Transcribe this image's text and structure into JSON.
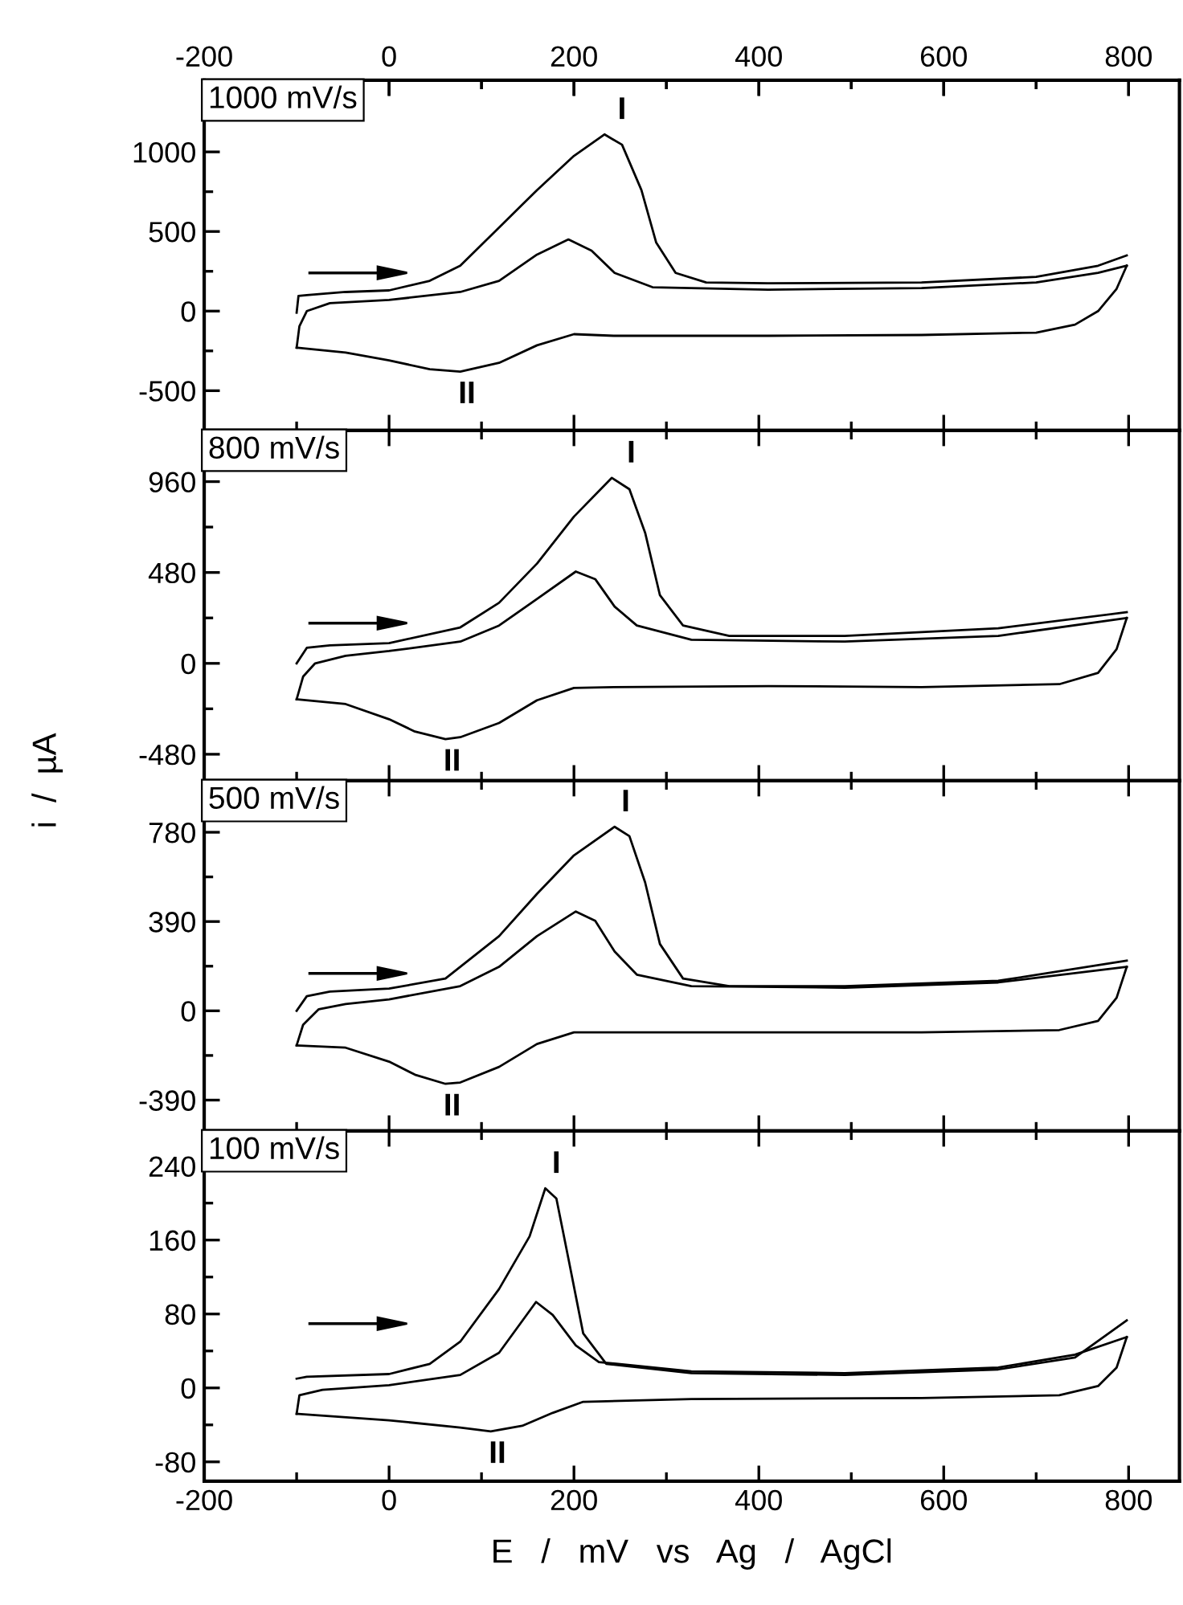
{
  "chart_data": [
    {
      "type": "line",
      "xlim": [
        -200,
        855
      ],
      "x2lim": [
        -200,
        855
      ],
      "xticks": [
        -200,
        {
          "value": -100,
          "label": null
        },
        0,
        {
          "value": 100,
          "label": null
        },
        200,
        {
          "value": 300,
          "label": null
        },
        400,
        {
          "value": 500,
          "label": null
        },
        600,
        {
          "value": 700,
          "label": null
        },
        800
      ],
      "x2ticks": [
        -200,
        {
          "value": -100,
          "label": null
        },
        0,
        {
          "value": 100,
          "label": null
        },
        200,
        {
          "value": 300,
          "label": null
        },
        400,
        {
          "value": 500,
          "label": null
        },
        600,
        {
          "value": 700,
          "label": null
        },
        800
      ],
      "ylim": [
        -750,
        1450
      ],
      "yticks": [
        -500,
        {
          "value": -250,
          "label": null
        },
        0,
        {
          "value": 250,
          "label": null
        },
        500,
        {
          "value": 750,
          "label": null
        },
        1000,
        {
          "value": 1250,
          "label": null
        }
      ],
      "tick_labels": "y",
      "grid": false,
      "marker": "none",
      "line_style": "solid",
      "series": [
        {
          "color": "#000000",
          "x": [
            -100,
            -98,
            -89,
            -47,
            0,
            44,
            77,
            119,
            160,
            200,
            233,
            252,
            273,
            289,
            310,
            343,
            410,
            576,
            700,
            767,
            798
          ],
          "values": [
            -10,
            95,
            100,
            120,
            130,
            190,
            285,
            525,
            760,
            975,
            1110,
            1045,
            760,
            430,
            240,
            180,
            175,
            180,
            215,
            285,
            350
          ]
        },
        {
          "color": "#000000",
          "x": [
            798,
            787,
            767,
            742,
            700,
            576,
            410,
            243,
            200,
            160,
            119,
            77,
            44,
            0,
            -47,
            -100
          ],
          "values": [
            285,
            140,
            0,
            -85,
            -135,
            -150,
            -155,
            -155,
            -145,
            -215,
            -325,
            -380,
            -365,
            -310,
            -260,
            -230
          ]
        },
        {
          "color": "#000000",
          "x": [
            -100,
            -97,
            -89,
            -64,
            0,
            77,
            119,
            160,
            194,
            219,
            244,
            285,
            410,
            576,
            700,
            767,
            798
          ],
          "values": [
            -230,
            -95,
            0,
            50,
            70,
            120,
            190,
            355,
            450,
            380,
            240,
            150,
            135,
            145,
            180,
            240,
            285
          ]
        }
      ],
      "annotations": [
        "1000 mV/s",
        {
          "text": "I",
          "x": 240,
          "y": 1110
        },
        {
          "text": "II",
          "x": 77,
          "y": -380
        }
      ]
    },
    {
      "type": "line",
      "xlim": [
        -200,
        855
      ],
      "xticks": [
        -200,
        {
          "value": -100,
          "label": null
        },
        0,
        {
          "value": 100,
          "label": null
        },
        200,
        {
          "value": 300,
          "label": null
        },
        400,
        {
          "value": 500,
          "label": null
        },
        600,
        {
          "value": 700,
          "label": null
        },
        800
      ],
      "ylim": [
        -620,
        1230
      ],
      "yticks": [
        -480,
        {
          "value": -240,
          "label": null
        },
        0,
        {
          "value": 240,
          "label": null
        },
        480,
        {
          "value": 720,
          "label": null
        },
        960,
        {
          "value": 1200,
          "label": null
        }
      ],
      "tick_labels": "y",
      "grid": false,
      "marker": "none",
      "line_style": "solid",
      "ylabel": "i  /  µA",
      "series": [
        {
          "color": "#000000",
          "x": [
            -100,
            -89,
            -64,
            0,
            77,
            119,
            160,
            200,
            241,
            260,
            277,
            293,
            318,
            368,
            493,
            659,
            798
          ],
          "values": [
            0,
            82,
            95,
            107,
            190,
            320,
            527,
            775,
            980,
            920,
            690,
            360,
            200,
            145,
            145,
            185,
            270
          ]
        },
        {
          "color": "#000000",
          "x": [
            798,
            787,
            767,
            725,
            576,
            410,
            243,
            200,
            160,
            119,
            77,
            61,
            28,
            0,
            -47,
            -100
          ],
          "values": [
            240,
            75,
            -50,
            -110,
            -125,
            -120,
            -125,
            -130,
            -195,
            -315,
            -390,
            -400,
            -360,
            -295,
            -215,
            -190
          ]
        },
        {
          "color": "#000000",
          "x": [
            -100,
            -93,
            -80,
            -47,
            0,
            77,
            119,
            160,
            202,
            223,
            244,
            268,
            327,
            493,
            659,
            798
          ],
          "values": [
            -190,
            -70,
            0,
            40,
            65,
            115,
            200,
            340,
            485,
            445,
            300,
            200,
            125,
            115,
            145,
            240
          ]
        }
      ],
      "annotations": [
        "800 mV/s",
        {
          "text": "I",
          "x": 250,
          "y": 980
        },
        {
          "text": "II",
          "x": 61,
          "y": -400
        }
      ]
    },
    {
      "type": "line",
      "xlim": [
        -200,
        855
      ],
      "xticks": [
        -200,
        {
          "value": -100,
          "label": null
        },
        0,
        {
          "value": 100,
          "label": null
        },
        200,
        {
          "value": 300,
          "label": null
        },
        400,
        {
          "value": 500,
          "label": null
        },
        600,
        {
          "value": 700,
          "label": null
        },
        800
      ],
      "ylim": [
        -525,
        1005
      ],
      "yticks": [
        -390,
        {
          "value": -195,
          "label": null
        },
        0,
        {
          "value": 195,
          "label": null
        },
        390,
        {
          "value": 585,
          "label": null
        },
        780,
        {
          "value": 975,
          "label": null
        }
      ],
      "tick_labels": "y",
      "grid": false,
      "marker": "none",
      "line_style": "solid",
      "series": [
        {
          "color": "#000000",
          "x": [
            -100,
            -89,
            -64,
            0,
            61,
            119,
            160,
            200,
            244,
            260,
            277,
            293,
            318,
            368,
            493,
            659,
            798
          ],
          "values": [
            0,
            64,
            84,
            97,
            141,
            326,
            511,
            679,
            804,
            763,
            561,
            292,
            141,
            108,
            108,
            131,
            219
          ]
        },
        {
          "color": "#000000",
          "x": [
            798,
            787,
            767,
            725,
            576,
            410,
            243,
            200,
            160,
            119,
            77,
            61,
            28,
            0,
            -47,
            -100
          ],
          "values": [
            192,
            57,
            -44,
            -84,
            -94,
            -94,
            -94,
            -94,
            -145,
            -245,
            -313,
            -319,
            -279,
            -222,
            -161,
            -151
          ]
        },
        {
          "color": "#000000",
          "x": [
            -100,
            -93,
            -76,
            -47,
            0,
            77,
            119,
            160,
            202,
            223,
            244,
            268,
            327,
            493,
            659,
            798
          ],
          "values": [
            -151,
            -61,
            7,
            30,
            50,
            108,
            192,
            326,
            434,
            393,
            259,
            158,
            108,
            101,
            124,
            192
          ]
        }
      ],
      "annotations": [
        "500 mV/s",
        {
          "text": "I",
          "x": 244,
          "y": 804
        },
        {
          "text": "II",
          "x": 61,
          "y": -319
        }
      ]
    },
    {
      "type": "line",
      "xlim": [
        -200,
        855
      ],
      "xticks": [
        -200,
        {
          "value": -100,
          "label": null
        },
        0,
        {
          "value": 100,
          "label": null
        },
        200,
        {
          "value": 300,
          "label": null
        },
        400,
        {
          "value": 500,
          "label": null
        },
        600,
        {
          "value": 700,
          "label": null
        },
        800
      ],
      "ylim": [
        -101,
        278
      ],
      "yticks": [
        -80,
        {
          "value": -40,
          "label": null
        },
        0,
        {
          "value": 40,
          "label": null
        },
        80,
        {
          "value": 120,
          "label": null
        },
        160,
        {
          "value": 200,
          "label": null
        },
        240
      ],
      "grid": false,
      "marker": "none",
      "line_style": "solid",
      "xlabel": "E   /   mV   vs   Ag   /   AgCl",
      "series": [
        {
          "color": "#000000",
          "x": [
            -100,
            -89,
            0,
            44,
            77,
            119,
            152,
            169,
            181,
            194,
            210,
            235,
            327,
            493,
            659,
            742,
            798
          ],
          "values": [
            10,
            12,
            15,
            26,
            50,
            107,
            164,
            216,
            205,
            140,
            59,
            26,
            16,
            14,
            20,
            33,
            73
          ]
        },
        {
          "color": "#000000",
          "x": [
            798,
            787,
            767,
            725,
            576,
            327,
            210,
            177,
            144,
            110,
            77,
            0,
            -100
          ],
          "values": [
            55,
            22,
            2,
            -8,
            -11,
            -12,
            -15,
            -27,
            -41,
            -47,
            -43,
            -35,
            -28
          ]
        },
        {
          "color": "#000000",
          "x": [
            -100,
            -97,
            -72,
            0,
            77,
            119,
            159,
            177,
            202,
            227,
            327,
            493,
            659,
            742,
            798
          ],
          "values": [
            -28,
            -8,
            -2,
            3,
            14,
            38,
            93,
            79,
            46,
            28,
            18,
            16,
            22,
            36,
            55
          ]
        }
      ],
      "annotations": [
        "100 mV/s",
        {
          "text": "I",
          "x": 169,
          "y": 216
        },
        {
          "text": "II",
          "x": 110,
          "y": -47
        }
      ]
    }
  ]
}
